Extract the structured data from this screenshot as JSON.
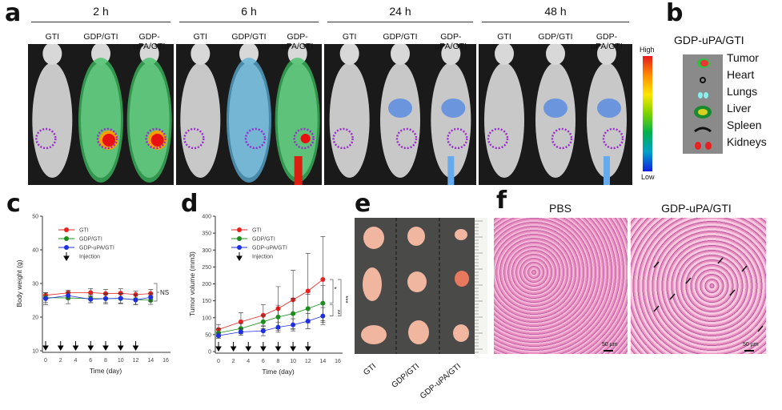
{
  "panel_labels": [
    "a",
    "b",
    "c",
    "d",
    "e",
    "f"
  ],
  "panel_a": {
    "timepoints": [
      "2 h",
      "6 h",
      "24 h",
      "48 h"
    ],
    "groups": [
      "GTI",
      "GDP/GTI",
      "GDP-uPA/GTI"
    ],
    "colorbar": {
      "high": "High",
      "low": "Low"
    }
  },
  "panel_b": {
    "title": "GDP-uPA/GTI",
    "organs": [
      "Tumor",
      "Heart",
      "Lungs",
      "Liver",
      "Spleen",
      "Kidneys"
    ]
  },
  "panel_e": {
    "groups": [
      "GTI",
      "GDP/GTI",
      "GDP-uPA/GTI"
    ]
  },
  "panel_f": {
    "titles": [
      "PBS",
      "GDP-uPA/GTI"
    ],
    "scale_bar": "50 µm"
  },
  "chart_data": [
    {
      "type": "line",
      "panel": "c",
      "xlabel": "Time (day)",
      "ylabel": "Body weight (g)",
      "xlim": [
        0,
        16
      ],
      "ylim": [
        10,
        50
      ],
      "xticks": [
        0,
        2,
        4,
        6,
        8,
        10,
        12,
        14,
        16
      ],
      "yticks": [
        10,
        20,
        30,
        40,
        50
      ],
      "x": [
        0,
        3,
        6,
        8,
        10,
        12,
        14
      ],
      "injection_days": [
        0,
        2,
        4,
        6,
        8,
        10,
        12
      ],
      "legend": {
        "position": "top-left",
        "injection_label": "Injection"
      },
      "annotation": "NS",
      "series": [
        {
          "name": "GTI",
          "color": "#e8221f",
          "values": [
            26.5,
            27.2,
            27.3,
            27.0,
            27.1,
            26.7,
            27.0
          ],
          "error": [
            0.8,
            0.8,
            1.2,
            1.2,
            1.3,
            1.0,
            1.2
          ]
        },
        {
          "name": "GDP/GTI",
          "color": "#1c8c1c",
          "values": [
            25.8,
            25.7,
            25.5,
            25.5,
            25.5,
            25.2,
            25.0
          ],
          "error": [
            1.5,
            1.7,
            1.2,
            1.6,
            1.5,
            1.5,
            1.2
          ]
        },
        {
          "name": "GDP-uPA/GTI",
          "color": "#1f2fe0",
          "values": [
            25.5,
            26.4,
            25.3,
            25.5,
            25.6,
            25.1,
            25.9
          ],
          "error": [
            1.8,
            1.0,
            1.0,
            1.2,
            1.4,
            1.3,
            1.2
          ]
        }
      ]
    },
    {
      "type": "line",
      "panel": "d",
      "xlabel": "Time (day)",
      "ylabel": "Tumor volume (mm3)",
      "xlim": [
        0,
        16
      ],
      "ylim": [
        0,
        400
      ],
      "xticks": [
        0,
        2,
        4,
        6,
        8,
        10,
        12,
        14,
        16
      ],
      "yticks": [
        0,
        50,
        100,
        150,
        200,
        250,
        300,
        350,
        400
      ],
      "x": [
        0,
        3,
        6,
        8,
        10,
        12,
        14
      ],
      "injection_days": [
        0,
        2,
        4,
        6,
        8,
        10,
        12
      ],
      "legend": {
        "position": "top-left",
        "injection_label": "Injection"
      },
      "significance": [
        "*",
        "**",
        "***"
      ],
      "series": [
        {
          "name": "GTI",
          "color": "#e8221f",
          "values": [
            65,
            88,
            107,
            127,
            153,
            179,
            213
          ],
          "error": [
            15,
            27,
            31,
            65,
            87,
            111,
            127
          ]
        },
        {
          "name": "GDP/GTI",
          "color": "#1c8c1c",
          "values": [
            55,
            68,
            88,
            102,
            112,
            127,
            143
          ],
          "error": [
            12,
            15,
            20,
            35,
            45,
            42,
            52
          ]
        },
        {
          "name": "GDP-uPA/GTI",
          "color": "#1f2fe0",
          "values": [
            47,
            58,
            61,
            72,
            79,
            90,
            105
          ],
          "error": [
            8,
            10,
            14,
            15,
            18,
            22,
            25
          ]
        }
      ]
    }
  ]
}
